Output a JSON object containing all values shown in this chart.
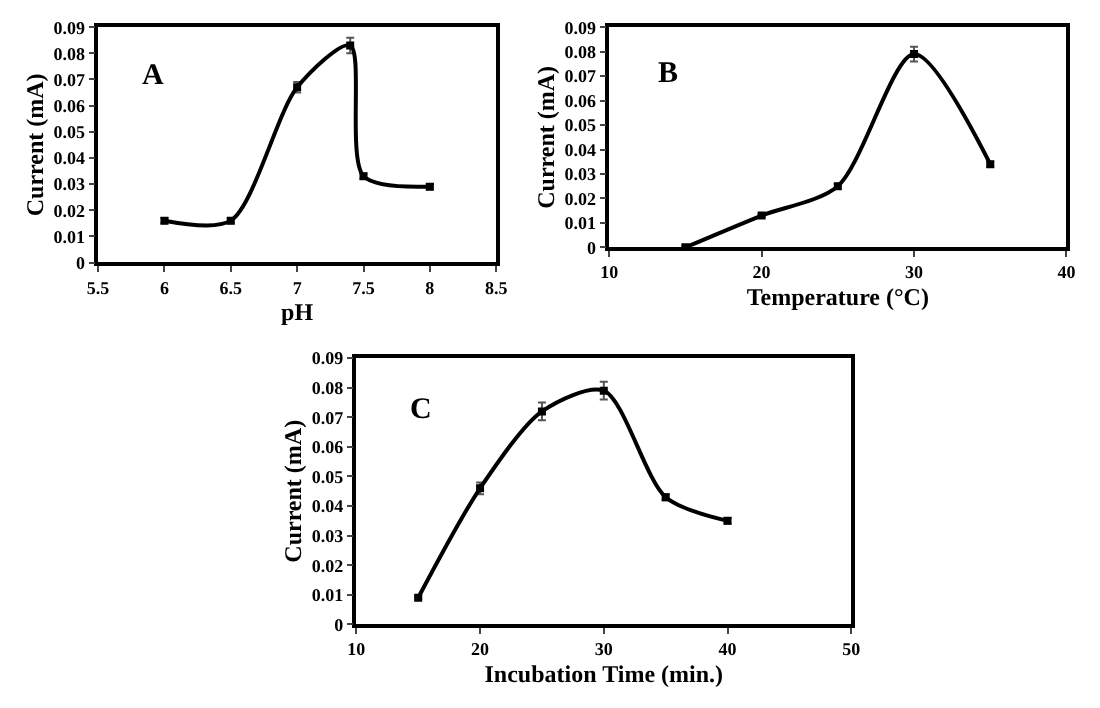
{
  "chart_data": [
    {
      "type": "line",
      "x": [
        6,
        6.5,
        7,
        7.4,
        7.5,
        8
      ],
      "values": [
        0.016,
        0.016,
        0.067,
        0.083,
        0.033,
        0.029
      ],
      "errors": [
        0.001,
        0.001,
        0.002,
        0.003,
        0.001,
        0.001
      ],
      "color": "#000000",
      "marker": "square",
      "line_style": "solid",
      "grid": false,
      "xlabel": "pH",
      "ylabel": "Current (mA)",
      "annotations": [
        "A"
      ],
      "xlim": [
        5.5,
        8.5
      ],
      "xticks": [
        5.5,
        6,
        6.5,
        7,
        7.5,
        8,
        8.5
      ],
      "ylim": [
        0,
        0.09
      ],
      "yticks": [
        0,
        0.01,
        0.02,
        0.03,
        0.04,
        0.05,
        0.06,
        0.07,
        0.08,
        0.09
      ]
    },
    {
      "type": "line",
      "x": [
        15,
        20,
        25,
        30,
        35
      ],
      "values": [
        0.0,
        0.013,
        0.025,
        0.079,
        0.034
      ],
      "errors": [
        0.0005,
        0.0005,
        0.001,
        0.003,
        0.001
      ],
      "color": "#000000",
      "marker": "square",
      "line_style": "solid",
      "grid": false,
      "xlabel": "Temperature (°C)",
      "ylabel": "Current (mA)",
      "annotations": [
        "B"
      ],
      "xlim": [
        10,
        40
      ],
      "xticks": [
        10,
        20,
        30,
        40
      ],
      "ylim": [
        0,
        0.09
      ],
      "yticks": [
        0,
        0.01,
        0.02,
        0.03,
        0.04,
        0.05,
        0.06,
        0.07,
        0.08,
        0.09
      ]
    },
    {
      "type": "line",
      "x": [
        15,
        20,
        25,
        30,
        35,
        40
      ],
      "values": [
        0.009,
        0.046,
        0.072,
        0.079,
        0.043,
        0.035
      ],
      "errors": [
        0.0005,
        0.002,
        0.003,
        0.003,
        0.001,
        0.001
      ],
      "color": "#000000",
      "marker": "square",
      "line_style": "solid",
      "grid": false,
      "xlabel": "Incubation Time (min.)",
      "ylabel": "Current (mA)",
      "annotations": [
        "C"
      ],
      "xlim": [
        10,
        50
      ],
      "xticks": [
        10,
        20,
        30,
        40,
        50
      ],
      "ylim": [
        0,
        0.09
      ],
      "yticks": [
        0,
        0.01,
        0.02,
        0.03,
        0.04,
        0.05,
        0.06,
        0.07,
        0.08,
        0.09
      ]
    }
  ]
}
